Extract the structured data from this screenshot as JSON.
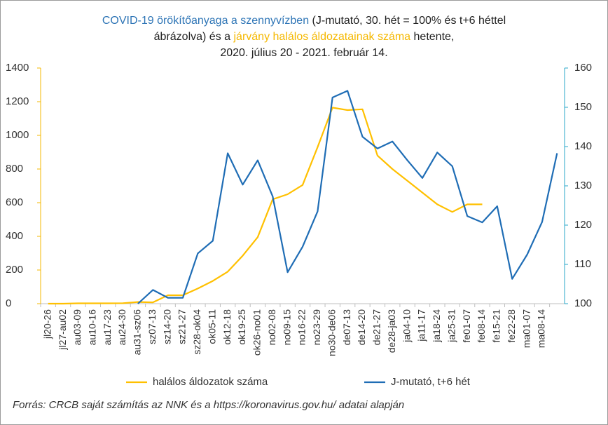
{
  "chart_data": {
    "type": "line",
    "title_lines": [
      [
        {
          "text": "COVID-19 örökítőanyaga a szennyvízben",
          "color": "#2e75b6"
        },
        {
          "text": " (J-mutató, 30. hét = 100% és t+6 héttel",
          "color": "#222222"
        }
      ],
      [
        {
          "text": "ábrázolva) és a ",
          "color": "#222222"
        },
        {
          "text": "járvány halálos áldozatainak száma",
          "color": "#f5b800"
        },
        {
          "text": " hetente,",
          "color": "#222222"
        }
      ],
      [
        {
          "text": "2020. július 20 - 2021. február 14.",
          "color": "#222222"
        }
      ]
    ],
    "categories": [
      "jl20-26",
      "jl27-au02",
      "au03-09",
      "au10-16",
      "au17-23",
      "au24-30",
      "au31-sz06",
      "sz07-13",
      "sz14-20",
      "sz21-27",
      "sz28-ok04",
      "ok05-11",
      "ok12-18",
      "ok19-25",
      "ok26-no01",
      "no02-08",
      "no09-15",
      "no16-22",
      "no23-29",
      "no30-de06",
      "de07-13",
      "de14-20",
      "de21-27",
      "de28-ja03",
      "ja04-10",
      "ja11-17",
      "ja18-24",
      "ja25-31",
      "fe01-07",
      "fe08-14",
      "fe15-21",
      "fe22-28",
      "ma01-07",
      "ma08-14",
      null
    ],
    "series": [
      {
        "name": "halálos áldozatok száma",
        "color": "#ffc000",
        "values": [
          0,
          0,
          2,
          2,
          2,
          3,
          10,
          8,
          50,
          50,
          90,
          135,
          190,
          285,
          395,
          620,
          650,
          705,
          930,
          1165,
          1150,
          1155,
          880,
          800,
          730,
          660,
          590,
          545,
          590,
          590,
          null,
          null,
          null,
          null,
          null
        ]
      },
      {
        "name": "J-mutató, t+6 hét",
        "color": "#1f6db5",
        "axis": "y2",
        "values": [
          null,
          null,
          null,
          null,
          null,
          null,
          100,
          103.5,
          101.5,
          101.5,
          112.8,
          116,
          138.3,
          130.3,
          136.5,
          127.3,
          108,
          114.5,
          123.5,
          152.5,
          154.2,
          142.5,
          139.5,
          141.3,
          136.5,
          132,
          138.5,
          135,
          122.3,
          120.7,
          124.8,
          106.3,
          112.5,
          120.8,
          138.3
        ]
      }
    ],
    "ylim": [
      0,
      1400
    ],
    "yticks": [
      0,
      200,
      400,
      600,
      800,
      1000,
      1200,
      1400
    ],
    "ytick_color": "#f5b800",
    "y2lim": [
      100,
      160
    ],
    "y2ticks": [
      100,
      110,
      120,
      130,
      140,
      150,
      160
    ],
    "y2tick_color": "#2aa7c9",
    "source": "Forrás: CRCB saját számítás az NNK és a https://koronavirus.gov.hu/ adatai alapján"
  }
}
